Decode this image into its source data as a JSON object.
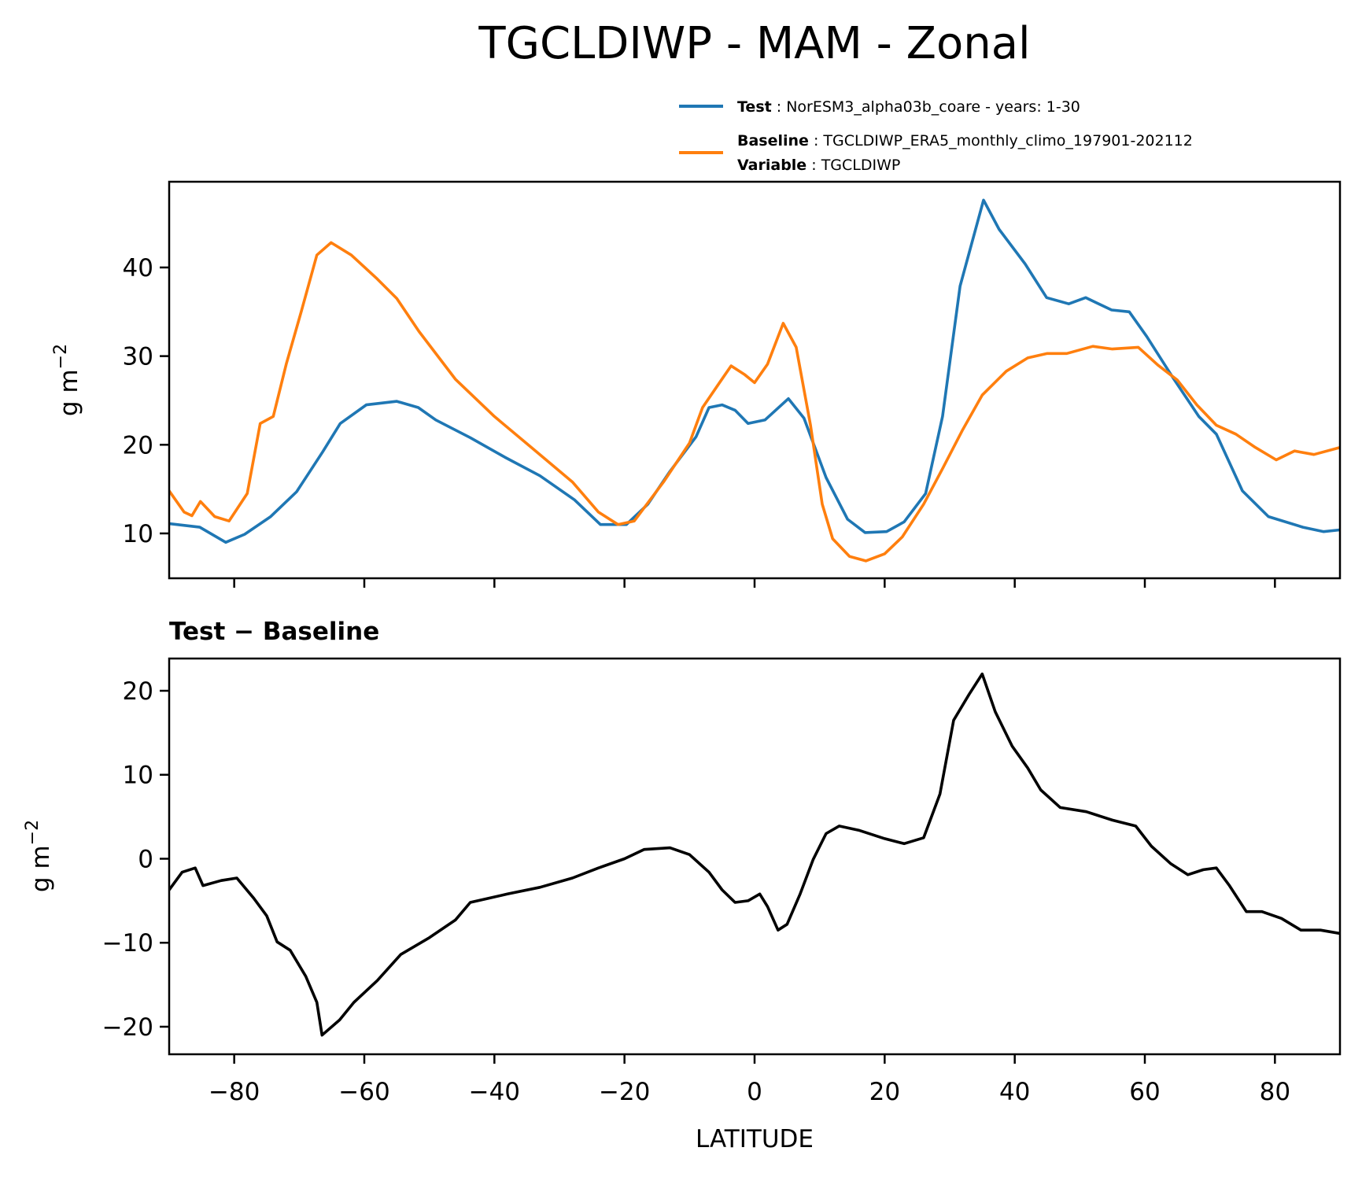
{
  "chart_data": [
    {
      "type": "line",
      "title": "TGCLDIWP - MAM - Zonal",
      "xlabel": "",
      "ylabel": "g m",
      "ylabel_exponent": "−2",
      "xlim": [
        -90,
        90
      ],
      "ylim": [
        4.94,
        49.67
      ],
      "xticks": [
        -80,
        -60,
        -40,
        -20,
        0,
        20,
        40,
        60,
        80
      ],
      "xtick_labels_visible": false,
      "yticks": [
        10,
        20,
        30,
        40
      ],
      "ytick_labels": [
        "10",
        "20",
        "30",
        "40"
      ],
      "grid": false,
      "legend": {
        "placement": "above-top-right",
        "entries": [
          {
            "bold": "Test",
            "text": "NorESM3_alpha03b_coare - years: 1-30",
            "color": "#1f77b4"
          },
          {
            "bold": "Baseline",
            "text": "TGCLDIWP_ERA5_monthly_climo_197901-202112",
            "bold2": "Variable",
            "text2": "TGCLDIWP",
            "color": "#ff7f0e"
          }
        ]
      },
      "series": [
        {
          "name": "Test",
          "color": "#1f77b4",
          "x": [
            -90,
            -85.3,
            -81.3,
            -78.4,
            -74.4,
            -70.4,
            -66.4,
            -63.7,
            -59.7,
            -55,
            -51.7,
            -49,
            -43.7,
            -38.4,
            -33,
            -27.7,
            -23.7,
            -19.7,
            -16.4,
            -13.1,
            -9,
            -7,
            -5,
            -3,
            -1,
            1.6,
            5.2,
            7.6,
            11,
            14.3,
            17,
            20.3,
            23,
            26.3,
            28.9,
            31.6,
            35.2,
            37.6,
            41.6,
            44.9,
            48.3,
            50.9,
            54.9,
            57.6,
            60.3,
            64.3,
            68.3,
            71,
            75,
            79,
            84.3,
            87.5,
            90
          ],
          "y": [
            11.1,
            10.7,
            9.0,
            9.9,
            11.9,
            14.7,
            19.2,
            22.4,
            24.5,
            24.9,
            24.2,
            22.8,
            20.8,
            18.6,
            16.5,
            13.8,
            11.0,
            11.0,
            13.3,
            16.9,
            20.9,
            24.2,
            24.5,
            23.9,
            22.4,
            22.8,
            25.2,
            23.0,
            16.3,
            11.6,
            10.1,
            10.2,
            11.3,
            14.5,
            23.2,
            37.9,
            47.6,
            44.3,
            40.4,
            36.6,
            35.9,
            36.6,
            35.2,
            35.0,
            32.2,
            27.6,
            23.2,
            21.2,
            14.8,
            11.9,
            10.7,
            10.2,
            10.4
          ]
        },
        {
          "name": "Baseline",
          "color": "#ff7f0e",
          "x": [
            -90,
            -87.7,
            -86.5,
            -85.2,
            -83,
            -80.8,
            -78,
            -76,
            -74,
            -72,
            -69.7,
            -67.3,
            -65.1,
            -62,
            -58,
            -55,
            -51.6,
            -46,
            -40,
            -34,
            -28,
            -24,
            -21,
            -18.5,
            -14,
            -10,
            -8,
            -5.3,
            -3.6,
            -1.5,
            0,
            2,
            4.4,
            6.4,
            8.6,
            10.4,
            12,
            14.6,
            17.1,
            20,
            22.7,
            26,
            28.9,
            32,
            35,
            38.7,
            42,
            45,
            48,
            52,
            55,
            59,
            62,
            65,
            68,
            71,
            74,
            77,
            80.2,
            83,
            86,
            90
          ],
          "y": [
            14.8,
            12.4,
            12.0,
            13.6,
            11.9,
            11.4,
            14.5,
            22.4,
            23.2,
            29.1,
            35.0,
            41.4,
            42.8,
            41.4,
            38.7,
            36.5,
            32.8,
            27.4,
            23.2,
            19.5,
            15.8,
            12.4,
            11.0,
            11.4,
            15.8,
            20.2,
            24.2,
            27.1,
            28.9,
            27.9,
            27.0,
            29.1,
            33.7,
            31.0,
            22.2,
            13.3,
            9.4,
            7.4,
            6.9,
            7.7,
            9.6,
            13.3,
            17.3,
            21.7,
            25.6,
            28.3,
            29.8,
            30.3,
            30.3,
            31.1,
            30.8,
            31.0,
            29.0,
            27.3,
            24.5,
            22.2,
            21.2,
            19.7,
            18.3,
            19.3,
            18.9,
            19.7
          ]
        }
      ]
    },
    {
      "type": "line",
      "title": "Test − Baseline",
      "xlabel": "LATITUDE",
      "ylabel": "g m",
      "ylabel_exponent": "−2",
      "xlim": [
        -90,
        90
      ],
      "ylim": [
        -23.28,
        23.84
      ],
      "xticks": [
        -80,
        -60,
        -40,
        -20,
        0,
        20,
        40,
        60,
        80
      ],
      "xtick_labels": [
        "−80",
        "−60",
        "−40",
        "−20",
        "0",
        "20",
        "40",
        "60",
        "80"
      ],
      "yticks": [
        -20,
        -10,
        0,
        10,
        20
      ],
      "ytick_labels": [
        "−20",
        "−10",
        "0",
        "10",
        "20"
      ],
      "grid": false,
      "series": [
        {
          "name": "Test - Baseline",
          "color": "#000000",
          "x": [
            -90,
            -88,
            -86,
            -84.8,
            -82,
            -79.6,
            -77,
            -75,
            -73.4,
            -71.4,
            -69,
            -67.3,
            -66.5,
            -63.8,
            -61.6,
            -58,
            -54.4,
            -50,
            -46,
            -43.7,
            -38,
            -33,
            -28,
            -24,
            -20,
            -17,
            -13,
            -10,
            -7,
            -5,
            -3,
            -1,
            0.8,
            2,
            3.6,
            5,
            7,
            9,
            11,
            13,
            16,
            20,
            23,
            26,
            28.5,
            30.6,
            33,
            35,
            37,
            39.6,
            42,
            44,
            47,
            51,
            55,
            58.6,
            61,
            64,
            66.6,
            69,
            71,
            73,
            75.6,
            78,
            81,
            84,
            87,
            90
          ],
          "y": [
            -3.7,
            -1.6,
            -1.1,
            -3.2,
            -2.6,
            -2.3,
            -4.7,
            -6.8,
            -9.9,
            -10.9,
            -14.0,
            -17.1,
            -21.0,
            -19.2,
            -17.1,
            -14.5,
            -11.4,
            -9.4,
            -7.3,
            -5.2,
            -4.2,
            -3.4,
            -2.3,
            -1.1,
            0.0,
            1.1,
            1.3,
            0.5,
            -1.6,
            -3.7,
            -5.2,
            -5.0,
            -4.2,
            -5.7,
            -8.5,
            -7.8,
            -4.2,
            -0.1,
            3.0,
            3.9,
            3.4,
            2.4,
            1.8,
            2.5,
            7.7,
            16.5,
            19.6,
            22.0,
            17.5,
            13.4,
            10.8,
            8.2,
            6.1,
            5.6,
            4.6,
            3.9,
            1.5,
            -0.6,
            -1.9,
            -1.3,
            -1.1,
            -3.2,
            -6.3,
            -6.3,
            -7.1,
            -8.5,
            -8.5,
            -8.9
          ]
        }
      ]
    }
  ]
}
